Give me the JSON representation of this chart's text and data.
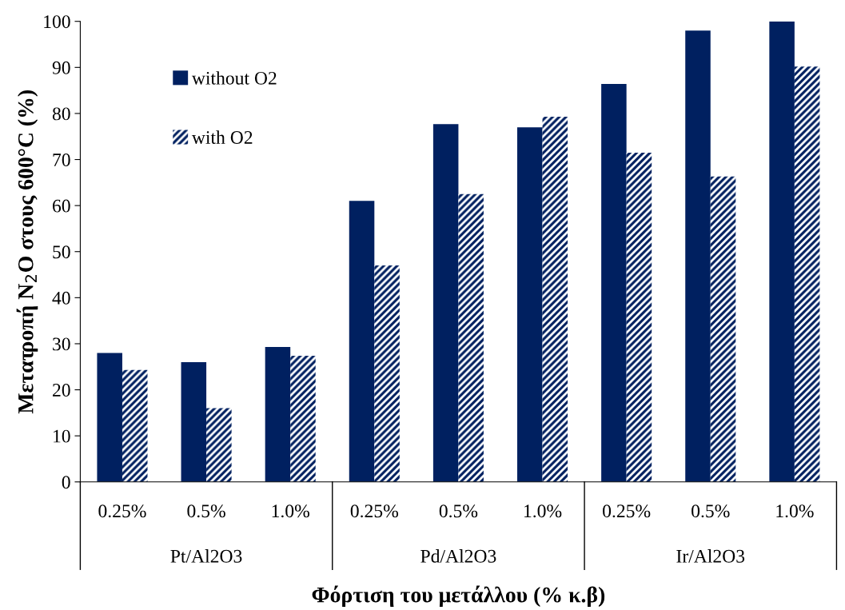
{
  "chart_data": {
    "type": "bar",
    "xlabel": "Φόρτιση του μετάλλου (% κ.β)",
    "ylabel": "Μετατροπή N$_{2}$O στους 600°C (%)",
    "categories": [
      "0.25%",
      "0.5%",
      "1.0%",
      "0.25%",
      "0.5%",
      "1.0%",
      "0.25%",
      "0.5%",
      "1.0%"
    ],
    "series": [
      {
        "name": "without O2",
        "color": "#002060",
        "values": [
          28.0,
          26.0,
          29.3,
          61.0,
          77.7,
          77.0,
          86.4,
          98.0,
          100.0
        ]
      },
      {
        "name": "with O2",
        "color": "#002060",
        "values": [
          24.3,
          16.0,
          27.4,
          47.0,
          62.5,
          79.3,
          71.5,
          66.3,
          90.2
        ]
      }
    ],
    "annotations": [
      "Pt/Al2O3",
      "Pd/Al2O3",
      "Ir/Al2O3"
    ],
    "ylim": [
      0,
      100
    ],
    "yticks": [
      0,
      10,
      20,
      30,
      40,
      50,
      60,
      70,
      80,
      90,
      100
    ],
    "grid": false,
    "legend": "top left"
  }
}
